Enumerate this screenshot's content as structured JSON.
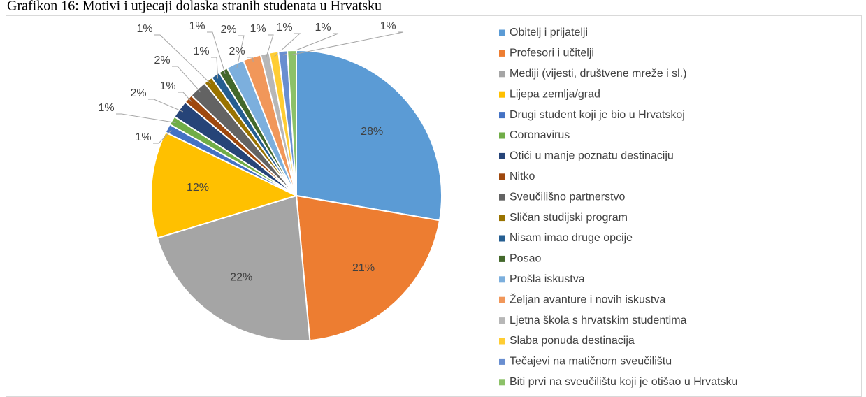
{
  "chart_data": {
    "type": "pie",
    "title": "Grafikon 16: Motivi i utjecaji dolaska stranih studenata u Hrvatsku",
    "categories": [
      "Obitelj i prijatelji",
      "Profesori i učitelji",
      "Mediji (vijesti, društvene mreže i sl.)",
      "Lijepa zemlja/grad",
      "Drugi student koji  je bio u Hrvatskoj",
      "Coronavirus",
      "Otići u manje poznatu destinaciju",
      "Nitko",
      "Sveučilišno partnerstvo",
      "Sličan studijski program",
      "Nisam imao druge opcije",
      "Posao",
      "Prošla iskustva",
      "Željan avanture i novih iskustva",
      "Ljetna škola s hrvatskim studentima",
      "Slaba ponuda destinacija",
      "Tečajevi na matičnom sveučilištu",
      "Biti prvi na sveučilištu koji je otišao u Hrvatsku"
    ],
    "values": [
      28,
      21,
      22,
      12,
      1,
      1,
      2,
      1,
      2,
      1,
      1,
      1,
      2,
      2,
      1,
      1,
      1,
      1
    ],
    "value_labels": [
      "28%",
      "21%",
      "22%",
      "12%",
      "1%",
      "1%",
      "2%",
      "1%",
      "2%",
      "1%",
      "1%",
      "1%",
      "2%",
      "2%",
      "1%",
      "1%",
      "1%",
      "1%"
    ],
    "colors": [
      "#5b9bd5",
      "#ed7d31",
      "#a5a5a5",
      "#ffc000",
      "#4472c4",
      "#70ad47",
      "#264478",
      "#9e480e",
      "#636363",
      "#997300",
      "#255e91",
      "#43682b",
      "#7cafdd",
      "#f1975a",
      "#b7b7b7",
      "#ffcd33",
      "#698ed0",
      "#8cc168"
    ],
    "legend": "right"
  }
}
